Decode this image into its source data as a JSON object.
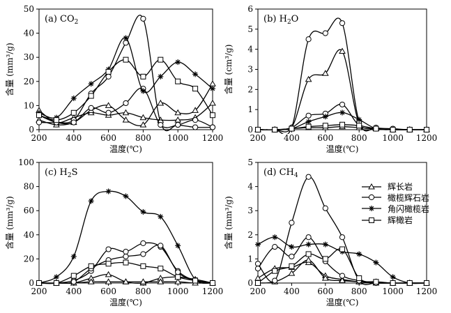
{
  "chart_data": [
    {
      "id": "co2",
      "type": "line",
      "title_main": "(a) CO",
      "title_sub": "2",
      "ylabel": "含量 (mm³/g)",
      "xlabel": "温度(℃)",
      "xlim": [
        200,
        1200
      ],
      "ylim": [
        0,
        50
      ],
      "xticks": [
        200,
        400,
        600,
        800,
        1000,
        1200
      ],
      "yticks": [
        0,
        10,
        20,
        30,
        40,
        50
      ],
      "series": [
        {
          "name": "辉长岩",
          "marker": "triangle",
          "x": [
            200,
            300,
            400,
            500,
            600,
            700,
            800,
            900,
            1000,
            1100,
            1200
          ],
          "y": [
            8,
            3,
            5,
            7,
            6,
            7,
            5,
            4,
            4,
            5,
            11
          ]
        },
        {
          "name": "辉长岩",
          "marker": "triangle",
          "x": [
            200,
            300,
            400,
            500,
            600,
            700,
            800,
            900,
            1000,
            1100,
            1200
          ],
          "y": [
            4,
            2,
            3,
            8,
            10,
            4,
            2,
            11,
            7,
            8,
            19
          ]
        },
        {
          "name": "橄榄辉石岩",
          "marker": "circle",
          "x": [
            200,
            300,
            400,
            500,
            600,
            700,
            800,
            900,
            1000,
            1100,
            1200
          ],
          "y": [
            3,
            3,
            4,
            15,
            22,
            36,
            46,
            3,
            2,
            1,
            1
          ]
        },
        {
          "name": "橄榄辉石岩",
          "marker": "circle",
          "x": [
            200,
            300,
            400,
            500,
            600,
            700,
            800,
            900,
            1000,
            1100,
            1200
          ],
          "y": [
            6,
            3,
            3,
            9,
            7,
            11,
            17,
            2,
            2,
            4,
            1
          ]
        },
        {
          "name": "角闪橄榄岩",
          "marker": "star",
          "x": [
            200,
            300,
            400,
            500,
            600,
            700,
            800,
            900,
            1000,
            1100,
            1200
          ],
          "y": [
            7,
            5,
            13,
            19,
            25,
            38,
            16,
            22,
            28,
            23,
            17
          ]
        },
        {
          "name": "辉橄岩",
          "marker": "square",
          "x": [
            200,
            300,
            400,
            500,
            600,
            700,
            800,
            900,
            1000,
            1100,
            1200
          ],
          "y": [
            6,
            4,
            7,
            14,
            24,
            29,
            22,
            29,
            20,
            17,
            6
          ]
        }
      ]
    },
    {
      "id": "h2o",
      "type": "line",
      "title_main": "(b) H",
      "title_sub": "2",
      "title_tail": "O",
      "ylabel": "含量 (cm³/g)",
      "xlabel": "温度(℃)",
      "xlim": [
        200,
        1200
      ],
      "ylim": [
        0,
        6
      ],
      "xticks": [
        200,
        400,
        600,
        800,
        1000,
        1200
      ],
      "yticks": [
        0,
        1,
        2,
        3,
        4,
        5,
        6
      ],
      "series": [
        {
          "name": "辉长岩",
          "marker": "triangle",
          "x": [
            200,
            300,
            400,
            500,
            600,
            700,
            800,
            900,
            1000,
            1100,
            1200
          ],
          "y": [
            0,
            0,
            0.1,
            2.5,
            2.8,
            3.9,
            0.3,
            0.05,
            0,
            0,
            0
          ]
        },
        {
          "name": "辉长岩",
          "marker": "triangle",
          "x": [
            200,
            300,
            400,
            500,
            600,
            700,
            800,
            900,
            1000,
            1100,
            1200
          ],
          "y": [
            0,
            0,
            0.05,
            0.1,
            0.1,
            0.15,
            0.1,
            0.05,
            0,
            0,
            0
          ]
        },
        {
          "name": "橄榄辉石岩",
          "marker": "circle",
          "x": [
            200,
            300,
            400,
            500,
            600,
            700,
            800,
            900,
            1000,
            1100,
            1200
          ],
          "y": [
            0,
            0,
            0.1,
            4.5,
            4.8,
            5.3,
            0.4,
            0.1,
            0.05,
            0,
            0
          ]
        },
        {
          "name": "橄榄辉石岩",
          "marker": "circle",
          "x": [
            200,
            300,
            400,
            500,
            600,
            700,
            800,
            900,
            1000,
            1100,
            1200
          ],
          "y": [
            0,
            0,
            0.1,
            0.7,
            0.8,
            1.25,
            0.2,
            0.05,
            0,
            0,
            0
          ]
        },
        {
          "name": "角闪橄榄岩",
          "marker": "star",
          "x": [
            200,
            300,
            400,
            500,
            600,
            700,
            800,
            900,
            1000,
            1100,
            1200
          ],
          "y": [
            0,
            0,
            0.05,
            0.4,
            0.65,
            0.85,
            0.5,
            0.05,
            0,
            0,
            0
          ]
        },
        {
          "name": "辉橄岩",
          "marker": "square",
          "x": [
            200,
            300,
            400,
            500,
            600,
            700,
            800,
            900,
            1000,
            1100,
            1200
          ],
          "y": [
            0,
            0,
            0.05,
            0.15,
            0.2,
            0.25,
            0.2,
            0.05,
            0,
            0,
            0
          ]
        }
      ]
    },
    {
      "id": "h2s",
      "type": "line",
      "title_main": "(c) H",
      "title_sub": "2",
      "title_tail": "S",
      "ylabel": "含量 (mm³/g)",
      "xlabel": "温度(℃)",
      "xlim": [
        200,
        1200
      ],
      "ylim": [
        0,
        100
      ],
      "xticks": [
        200,
        400,
        600,
        800,
        1000,
        1200
      ],
      "yticks": [
        0,
        20,
        40,
        60,
        80,
        100
      ],
      "series": [
        {
          "name": "辉长岩",
          "marker": "triangle",
          "x": [
            200,
            300,
            400,
            500,
            600,
            700,
            800,
            900,
            1000,
            1100,
            1200
          ],
          "y": [
            0,
            0,
            0,
            4,
            7,
            1,
            0,
            4,
            5,
            3,
            0
          ]
        },
        {
          "name": "辉长岩",
          "marker": "triangle",
          "x": [
            200,
            300,
            400,
            500,
            600,
            700,
            800,
            900,
            1000,
            1100,
            1200
          ],
          "y": [
            0,
            0,
            0,
            1,
            1,
            1,
            1,
            1,
            1,
            0,
            0
          ]
        },
        {
          "name": "橄榄辉石岩",
          "marker": "circle",
          "x": [
            200,
            300,
            400,
            500,
            600,
            700,
            800,
            900,
            1000,
            1100,
            1200
          ],
          "y": [
            0,
            0,
            2,
            10,
            28,
            26,
            33,
            30,
            10,
            2,
            0
          ]
        },
        {
          "name": "橄榄辉石岩",
          "marker": "circle",
          "x": [
            200,
            300,
            400,
            500,
            600,
            700,
            800,
            900,
            1000,
            1100,
            1200
          ],
          "y": [
            0,
            0,
            1,
            12,
            19,
            22,
            24,
            31,
            9,
            2,
            0
          ]
        },
        {
          "name": "角闪橄榄岩",
          "marker": "star",
          "x": [
            200,
            300,
            400,
            500,
            600,
            700,
            800,
            900,
            1000,
            1100,
            1200
          ],
          "y": [
            0,
            5,
            22,
            68,
            76,
            72,
            59,
            55,
            31,
            3,
            0
          ]
        },
        {
          "name": "辉橄岩",
          "marker": "square",
          "x": [
            200,
            300,
            400,
            500,
            600,
            700,
            800,
            900,
            1000,
            1100,
            1200
          ],
          "y": [
            0,
            0,
            6,
            14,
            16,
            17,
            14,
            12,
            5,
            2,
            0
          ]
        }
      ]
    },
    {
      "id": "ch4",
      "type": "line",
      "title_main": "(d) CH",
      "title_sub": "4",
      "ylabel": "含量 (mm³/g)",
      "xlabel": "温度(℃)",
      "xlim": [
        200,
        1200
      ],
      "ylim": [
        0,
        5
      ],
      "xticks": [
        200,
        400,
        600,
        800,
        1000,
        1200
      ],
      "yticks": [
        0,
        1,
        2,
        3,
        4,
        5
      ],
      "series": [
        {
          "name": "辉长岩",
          "marker": "triangle",
          "x": [
            200,
            300,
            400,
            500,
            600,
            700,
            800,
            900,
            1000,
            1100,
            1200
          ],
          "y": [
            0.2,
            0.6,
            0.65,
            0.85,
            0.3,
            0.15,
            0.05,
            0.05,
            0,
            0,
            0
          ]
        },
        {
          "name": "辉长岩",
          "marker": "triangle",
          "x": [
            200,
            300,
            400,
            500,
            600,
            700,
            800,
            900,
            1000,
            1100,
            1200
          ],
          "y": [
            0,
            0.05,
            0.4,
            0.95,
            0.2,
            0.1,
            0.05,
            0,
            0,
            0,
            0
          ]
        },
        {
          "name": "橄榄辉石岩",
          "marker": "circle",
          "x": [
            200,
            300,
            400,
            500,
            600,
            700,
            800,
            900,
            1000,
            1100,
            1200
          ],
          "y": [
            0.8,
            0.1,
            2.5,
            4.4,
            3.1,
            1.9,
            0.1,
            0,
            0,
            0,
            0
          ]
        },
        {
          "name": "橄榄辉石岩",
          "marker": "circle",
          "x": [
            200,
            300,
            400,
            500,
            600,
            700,
            800,
            900,
            1000,
            1100,
            1200
          ],
          "y": [
            0.6,
            1.5,
            1.1,
            1.9,
            0.9,
            0.3,
            0.1,
            0,
            0,
            0,
            0
          ]
        },
        {
          "name": "角闪橄榄岩",
          "marker": "star",
          "x": [
            200,
            300,
            400,
            500,
            600,
            700,
            800,
            900,
            1000,
            1100,
            1200
          ],
          "y": [
            1.6,
            1.9,
            1.5,
            1.6,
            1.6,
            1.3,
            1.2,
            0.85,
            0.25,
            0,
            0
          ]
        },
        {
          "name": "辉橄岩",
          "marker": "square",
          "x": [
            200,
            300,
            400,
            500,
            600,
            700,
            800,
            900,
            1000,
            1100,
            1200
          ],
          "y": [
            0,
            0.5,
            0.7,
            1.2,
            1.0,
            1.4,
            0.2,
            0.05,
            0,
            0,
            0
          ]
        }
      ]
    }
  ],
  "legend": {
    "location": "panel-d-upper-right",
    "entries": [
      {
        "label": "辉长岩",
        "marker": "triangle"
      },
      {
        "label": "橄榄辉石岩",
        "marker": "circle"
      },
      {
        "label": "角闪橄榄岩",
        "marker": "star"
      },
      {
        "label": "辉橄岩",
        "marker": "square"
      }
    ]
  }
}
